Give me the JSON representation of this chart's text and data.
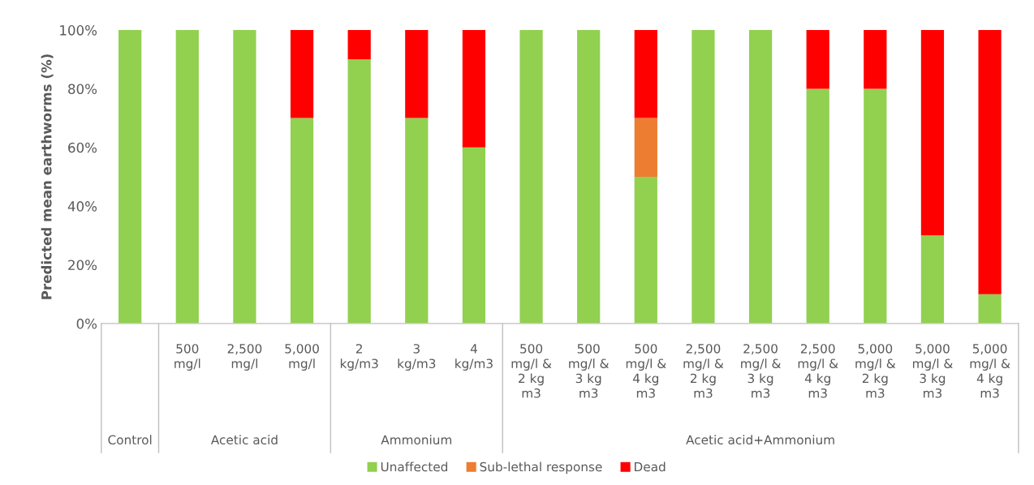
{
  "chart_data": {
    "type": "bar",
    "stacked": true,
    "ylabel": "Predicted mean earthworms (%)",
    "categories": [
      null,
      "500\nmg/l",
      "2,500\nmg/l",
      "5,000\nmg/l",
      "2\nkg/m3",
      "3\nkg/m3",
      "4\nkg/m3",
      "500\nmg/l &\n2 kg\nm3",
      "500\nmg/l &\n3 kg\nm3",
      "500\nmg/l &\n4 kg\nm3",
      "2,500\nmg/l &\n2 kg\nm3",
      "2,500\nmg/l &\n3 kg\nm3",
      "2,500\nmg/l &\n4 kg\nm3",
      "5,000\nmg/l &\n2 kg\nm3",
      "5,000\nmg/l &\n3 kg\nm3",
      "5,000\nmg/l &\n4 kg\nm3"
    ],
    "series": [
      {
        "name": "Unaffected",
        "color": "#92d050",
        "values": [
          100,
          100,
          100,
          70,
          90,
          70,
          60,
          100,
          100,
          50,
          100,
          100,
          80,
          80,
          30,
          10
        ]
      },
      {
        "name": "Sub-lethal response",
        "color": "#ed7d31",
        "values": [
          0,
          0,
          0,
          0,
          0,
          0,
          0,
          0,
          0,
          20,
          0,
          0,
          0,
          0,
          0,
          0
        ]
      },
      {
        "name": "Dead",
        "color": "#ff0000",
        "values": [
          0,
          0,
          0,
          30,
          10,
          30,
          40,
          0,
          0,
          30,
          0,
          0,
          20,
          20,
          70,
          90
        ]
      }
    ],
    "ylim": [
      0,
      100
    ],
    "yticks": [
      {
        "value": 0,
        "label": "0%"
      },
      {
        "value": 20,
        "label": "20%"
      },
      {
        "value": 40,
        "label": "40%"
      },
      {
        "value": 60,
        "label": "60%"
      },
      {
        "value": 80,
        "label": "80%"
      },
      {
        "value": 100,
        "label": "100%"
      }
    ],
    "annotations": [
      "Control",
      "Acetic acid",
      "Ammonium",
      "Acetic acid+Ammonium"
    ],
    "legend": "bottom",
    "grid": false
  }
}
